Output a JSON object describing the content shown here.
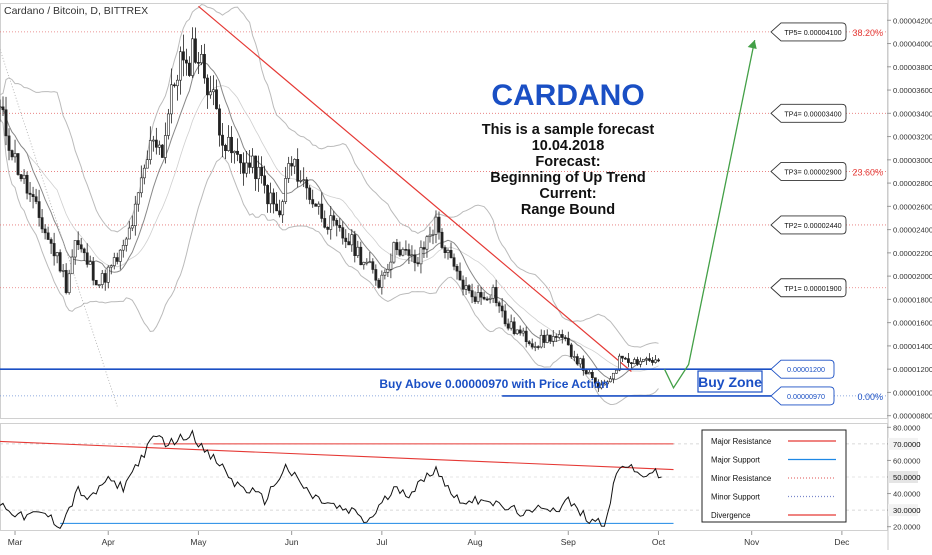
{
  "header": {
    "symbol_title": "Cardano / Bitcoin, D, BITTREX"
  },
  "annotation": {
    "title": "CARDANO",
    "lines": [
      "This is a sample forecast",
      "10.04.2018",
      "Forecast:",
      "Beginning of Up Trend",
      "Current:",
      "Range Bound"
    ],
    "buy_above_text": "Buy Above 0.00000970 with Price Action",
    "buy_zone_label": "Buy Zone"
  },
  "colors": {
    "blue": "#1a4fc4",
    "red": "#e53935",
    "green": "#43a047",
    "candle": "#222222",
    "ma": "#888888",
    "band": "#bbbbbb",
    "tp_line": "#e57373"
  },
  "chart_data": [
    {
      "type": "candlestick",
      "name": "price",
      "x_ticks": [
        "Mar",
        "Apr",
        "May",
        "Jun",
        "Jul",
        "Aug",
        "Sep",
        "Oct",
        "Nov",
        "Dec"
      ],
      "y_ticks": [
        "0.00004200",
        "0.00004000",
        "0.00003800",
        "0.00003600",
        "0.00003400",
        "0.00003200",
        "0.00003000",
        "0.00002800",
        "0.00002600",
        "0.00002400",
        "0.00002200",
        "0.00002000",
        "0.00001800",
        "0.00001600",
        "0.00001400",
        "0.00001200",
        "0.00001000",
        "0.00000800"
      ],
      "ylim": [
        7.8e-06,
        4.34e-05
      ],
      "targets": [
        {
          "label": "TP5= 0.00004100",
          "value": 4.1e-05
        },
        {
          "label": "TP4= 0.00003400",
          "value": 3.4e-05
        },
        {
          "label": "TP3= 0.00002900",
          "value": 2.9e-05
        },
        {
          "label": "TP2= 0.00002440",
          "value": 2.44e-05
        },
        {
          "label": "TP1= 0.00001900",
          "value": 1.9e-05
        }
      ],
      "fib_levels": [
        {
          "label": "38.20%",
          "value": 4.1e-05
        },
        {
          "label": "23.60%",
          "value": 2.9e-05
        },
        {
          "label": "0.00%",
          "value": 9.7e-06
        }
      ],
      "buy_zone": {
        "upper_label": "0.00001200",
        "upper": 1.2e-05,
        "lower_label": "0.00000970",
        "lower": 9.7e-06
      },
      "price_path": [
        [
          "2018-02-26",
          3.42e-05
        ],
        [
          "2018-03-03",
          3e-05
        ],
        [
          "2018-03-08",
          2.68e-05
        ],
        [
          "2018-03-13",
          2.38e-05
        ],
        [
          "2018-03-18",
          2.1e-05
        ],
        [
          "2018-03-20",
          1.92e-05
        ],
        [
          "2018-03-23",
          2.3e-05
        ],
        [
          "2018-03-27",
          2.12e-05
        ],
        [
          "2018-03-31",
          1.94e-05
        ],
        [
          "2018-04-04",
          2.07e-05
        ],
        [
          "2018-04-08",
          2.22e-05
        ],
        [
          "2018-04-12",
          2.55e-05
        ],
        [
          "2018-04-15",
          2.9e-05
        ],
        [
          "2018-04-18",
          3.22e-05
        ],
        [
          "2018-04-21",
          3.08e-05
        ],
        [
          "2018-04-24",
          3.55e-05
        ],
        [
          "2018-04-27",
          3.88e-05
        ],
        [
          "2018-04-29",
          3.72e-05
        ],
        [
          "2018-05-01",
          3.98e-05
        ],
        [
          "2018-05-04",
          3.82e-05
        ],
        [
          "2018-05-08",
          3.52e-05
        ],
        [
          "2018-05-12",
          3.12e-05
        ],
        [
          "2018-05-17",
          2.98e-05
        ],
        [
          "2018-05-22",
          2.92e-05
        ],
        [
          "2018-05-26",
          2.7e-05
        ],
        [
          "2018-05-30",
          2.5e-05
        ],
        [
          "2018-06-02",
          2.95e-05
        ],
        [
          "2018-06-05",
          2.9e-05
        ],
        [
          "2018-06-09",
          2.7e-05
        ],
        [
          "2018-06-14",
          2.5e-05
        ],
        [
          "2018-06-18",
          2.38e-05
        ],
        [
          "2018-06-23",
          2.28e-05
        ],
        [
          "2018-06-28",
          2.1e-05
        ],
        [
          "2018-07-02",
          1.95e-05
        ],
        [
          "2018-07-05",
          2.12e-05
        ],
        [
          "2018-07-08",
          2.28e-05
        ],
        [
          "2018-07-12",
          2.15e-05
        ],
        [
          "2018-07-15",
          2.12e-05
        ],
        [
          "2018-07-19",
          2.38e-05
        ],
        [
          "2018-07-21",
          2.45e-05
        ],
        [
          "2018-07-24",
          2.22e-05
        ],
        [
          "2018-07-28",
          2e-05
        ],
        [
          "2018-08-01",
          1.85e-05
        ],
        [
          "2018-08-05",
          1.82e-05
        ],
        [
          "2018-08-09",
          1.88e-05
        ],
        [
          "2018-08-13",
          1.6e-05
        ],
        [
          "2018-08-18",
          1.5e-05
        ],
        [
          "2018-08-23",
          1.42e-05
        ],
        [
          "2018-08-28",
          1.48e-05
        ],
        [
          "2018-09-01",
          1.45e-05
        ],
        [
          "2018-09-05",
          1.32e-05
        ],
        [
          "2018-09-09",
          1.18e-05
        ],
        [
          "2018-09-12",
          1.06e-05
        ],
        [
          "2018-09-15",
          1.04e-05
        ],
        [
          "2018-09-18",
          1.18e-05
        ],
        [
          "2018-09-21",
          1.32e-05
        ],
        [
          "2018-09-25",
          1.27e-05
        ],
        [
          "2018-09-29",
          1.29e-05
        ],
        [
          "2018-10-03",
          1.26e-05
        ]
      ],
      "forecast_path": [
        [
          "2018-10-05",
          1.2e-05
        ],
        [
          "2018-10-08",
          1.04e-05
        ],
        [
          "2018-10-13",
          1.24e-05
        ],
        [
          "2018-11-04",
          4.03e-05
        ]
      ]
    },
    {
      "type": "line",
      "name": "oscillator",
      "y_ticks": [
        "80.0000",
        "70.0000",
        "60.0000",
        "50.0000",
        "40.0000",
        "30.0000",
        "20.0000"
      ],
      "ylim": [
        18,
        82
      ],
      "levels": {
        "upper": 70,
        "middle": 50,
        "lower": 30
      },
      "path": [
        [
          "2018-02-26",
          34
        ],
        [
          "2018-03-05",
          26
        ],
        [
          "2018-03-13",
          28
        ],
        [
          "2018-03-18",
          20
        ],
        [
          "2018-03-24",
          42
        ],
        [
          "2018-03-28",
          36
        ],
        [
          "2018-04-02",
          48
        ],
        [
          "2018-04-08",
          44
        ],
        [
          "2018-04-14",
          62
        ],
        [
          "2018-04-19",
          75
        ],
        [
          "2018-04-23",
          70
        ],
        [
          "2018-04-28",
          74
        ],
        [
          "2018-05-01",
          77
        ],
        [
          "2018-05-05",
          65
        ],
        [
          "2018-05-10",
          58
        ],
        [
          "2018-05-15",
          46
        ],
        [
          "2018-05-20",
          42
        ],
        [
          "2018-05-25",
          36
        ],
        [
          "2018-06-01",
          56
        ],
        [
          "2018-06-05",
          48
        ],
        [
          "2018-06-10",
          38
        ],
        [
          "2018-06-15",
          34
        ],
        [
          "2018-06-20",
          30
        ],
        [
          "2018-06-25",
          28
        ],
        [
          "2018-06-28",
          22
        ],
        [
          "2018-07-03",
          34
        ],
        [
          "2018-07-08",
          44
        ],
        [
          "2018-07-12",
          40
        ],
        [
          "2018-07-17",
          48
        ],
        [
          "2018-07-21",
          56
        ],
        [
          "2018-07-26",
          40
        ],
        [
          "2018-08-01",
          34
        ],
        [
          "2018-08-06",
          38
        ],
        [
          "2018-08-11",
          32
        ],
        [
          "2018-08-16",
          30
        ],
        [
          "2018-08-21",
          27
        ],
        [
          "2018-08-26",
          33
        ],
        [
          "2018-08-30",
          30
        ],
        [
          "2018-09-03",
          36
        ],
        [
          "2018-09-07",
          28
        ],
        [
          "2018-09-11",
          24
        ],
        [
          "2018-09-15",
          22
        ],
        [
          "2018-09-19",
          52
        ],
        [
          "2018-09-22",
          58
        ],
        [
          "2018-09-26",
          51
        ],
        [
          "2018-10-01",
          53
        ],
        [
          "2018-10-04",
          50
        ]
      ],
      "legend": [
        {
          "label": "Major Resistance",
          "color": "#e53935",
          "style": "solid"
        },
        {
          "label": "Major Support",
          "color": "#1e88e5",
          "style": "solid"
        },
        {
          "label": "Minor Resistance",
          "color": "#e57373",
          "style": "dotted"
        },
        {
          "label": "Minor Support",
          "color": "#7986cb",
          "style": "dotted"
        },
        {
          "label": "Divergence",
          "color": "#e53935",
          "style": "solid"
        }
      ]
    }
  ]
}
